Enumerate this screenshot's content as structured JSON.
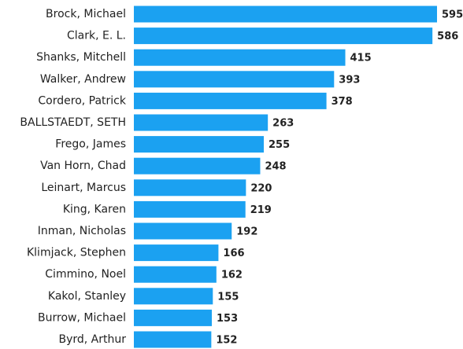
{
  "chart_data": {
    "type": "bar",
    "orientation": "horizontal",
    "categories": [
      "Brock, Michael",
      "Clark, E. L.",
      "Shanks, Mitchell",
      "Walker, Andrew",
      "Cordero, Patrick",
      "BALLSTAEDT, SETH",
      "Frego, James",
      "Van Horn, Chad",
      "Leinart, Marcus",
      "King, Karen",
      "Inman, Nicholas",
      "Klimjack, Stephen",
      "Cimmino, Noel",
      "Kakol, Stanley",
      "Burrow, Michael",
      "Byrd, Arthur"
    ],
    "values": [
      595,
      586,
      415,
      393,
      378,
      263,
      255,
      248,
      220,
      219,
      192,
      166,
      162,
      155,
      153,
      152
    ],
    "color": "#1ba1f1"
  }
}
